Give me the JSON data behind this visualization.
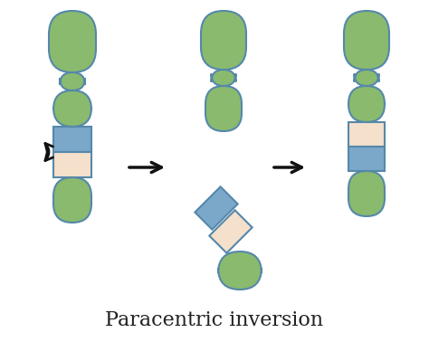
{
  "bg_color": "#ffffff",
  "green_color": "#8aba6e",
  "green_dark": "#7aaa5e",
  "blue_fill": "#7ba7c9",
  "blue_outline": "#5588aa",
  "peach_fill": "#f5e0cc",
  "title": "Paracentric inversion",
  "title_fontsize": 16,
  "title_color": "#222222",
  "arrow_color": "#111111"
}
